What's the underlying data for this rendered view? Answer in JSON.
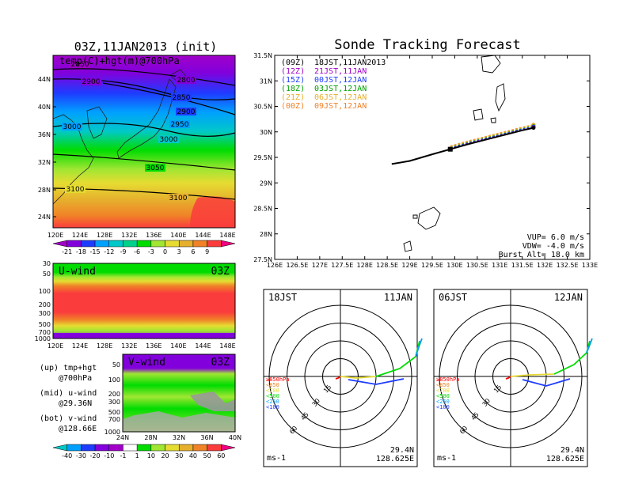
{
  "colors": {
    "temp_scale": [
      "#a000c8",
      "#8200dc",
      "#1e3cff",
      "#00a0ff",
      "#00c8c8",
      "#00d28c",
      "#00dc00",
      "#a0e632",
      "#e6dc32",
      "#e6af2d",
      "#f08228",
      "#fa3c3c",
      "#f00082"
    ],
    "wind_scale": [
      "#00c8c8",
      "#00a0ff",
      "#1e3cff",
      "#8200dc",
      "#a000c8",
      "#ffffff",
      "#00dc00",
      "#a0e632",
      "#e6dc32",
      "#e6af2d",
      "#f08228",
      "#fa3c3c",
      "#f00082"
    ],
    "track_colors": [
      "#000000",
      "#a000c8",
      "#1e3cff",
      "#00a000",
      "#e6af2d",
      "#f08228"
    ],
    "rose_colors": [
      "#ff0000",
      "#f08228",
      "#e6dc32",
      "#00dc00",
      "#00a0ff",
      "#1e3cff"
    ]
  },
  "map_panel": {
    "title": "03Z,11JAN2013 (init)",
    "subtitle": "temp(C)+hgt(m)@700hPa",
    "lat_labels": [
      "44N",
      "40N",
      "36N",
      "32N",
      "28N",
      "24N"
    ],
    "lon_labels": [
      "120E",
      "124E",
      "128E",
      "132E",
      "136E",
      "140E",
      "144E",
      "148E"
    ],
    "contour_labels": [
      "2850",
      "2900",
      "2800",
      "2850",
      "2900",
      "3000",
      "2950",
      "3000",
      "3050",
      "3100",
      "3100"
    ],
    "colorbar_labels": [
      "-21",
      "-18",
      "-15",
      "-12",
      "-9",
      "-6",
      "-3",
      "0",
      "3",
      "6",
      "9"
    ]
  },
  "uwind_panel": {
    "label": "U-wind",
    "time": "03Z",
    "p_labels": [
      "30",
      "50",
      "100",
      "200",
      "300",
      "500",
      "700",
      "1000"
    ],
    "lon_labels": [
      "120E",
      "124E",
      "128E",
      "132E",
      "136E",
      "140E",
      "144E",
      "148E"
    ]
  },
  "vwind_panel": {
    "label": "V-wind",
    "time": "03Z",
    "p_labels": [
      "50",
      "100",
      "200",
      "300",
      "500",
      "700",
      "1000"
    ],
    "lat_labels": [
      "24N",
      "28N",
      "32N",
      "36N",
      "40N"
    ],
    "colorbar_labels": [
      "-40",
      "-30",
      "-20",
      "-10",
      "-1",
      "1",
      "10",
      "20",
      "30",
      "40",
      "50",
      "60"
    ]
  },
  "legend_notes": {
    "up_label": "(up) tmp+hgt",
    "up_level": "@700hPa",
    "mid_label": "(mid) u-wind",
    "mid_loc": "@29.36N",
    "bot_label": "(bot) v-wind",
    "bot_loc": "@128.66E"
  },
  "tracking": {
    "title": "Sonde Tracking Forecast",
    "legend": [
      {
        "code": "(09Z)",
        "time": "18JST,11JAN2013"
      },
      {
        "code": "(12Z)",
        "time": "21JST,11JAN"
      },
      {
        "code": "(15Z)",
        "time": "00JST,12JAN"
      },
      {
        "code": "(18Z)",
        "time": "03JST,12JAN"
      },
      {
        "code": "(21Z)",
        "time": "06JST,12JAN"
      },
      {
        "code": "(00Z)",
        "time": "09JST,12JAN"
      }
    ],
    "lat_labels": [
      "31.5N",
      "31N",
      "30.5N",
      "30N",
      "29.5N",
      "29N",
      "28.5N",
      "28N",
      "27.5N"
    ],
    "lon_labels": [
      "126E",
      "126.5E",
      "127E",
      "127.5E",
      "128E",
      "128.5E",
      "129E",
      "129.5E",
      "130E",
      "130.5E",
      "131E",
      "131.5E",
      "132E",
      "132.5E",
      "133E"
    ],
    "vup": "VUP=  6.0 m/s",
    "vdw": "VDW= -4.0 m/s",
    "burst": "Burst Alt= 18.0 km"
  },
  "rose_left": {
    "time_jst": "18JST",
    "date": "11JAN",
    "ring_labels": [
      "15",
      "30",
      "45",
      "60"
    ],
    "levels": [
      "≥850hPa",
      "<850",
      "<700",
      "<500",
      "<250",
      "<100"
    ],
    "unit": "ms-1",
    "lat": "29.4N",
    "lon": "128.625E"
  },
  "rose_right": {
    "time_jst": "06JST",
    "date": "12JAN",
    "ring_labels": [
      "15",
      "30",
      "45",
      "60"
    ],
    "levels": [
      "≥850hPa",
      "<850",
      "<700",
      "<500",
      "<250",
      "<100"
    ],
    "unit": "ms-1",
    "lat": "29.4N",
    "lon": "128.625E"
  },
  "chart_data": [
    {
      "type": "line",
      "title": "Sonde Tracking Forecast",
      "xlim": [
        126,
        133
      ],
      "ylim": [
        27.5,
        31.5
      ],
      "series": [
        {
          "name": "(09Z)",
          "x": [
            128.6,
            129.0,
            129.5,
            129.9,
            130.3,
            130.7,
            131.1,
            131.5,
            131.75
          ],
          "y": [
            29.37,
            29.43,
            29.56,
            29.66,
            29.76,
            29.85,
            29.94,
            30.03,
            30.08
          ]
        },
        {
          "name": "(12Z)",
          "x": [
            129.9,
            130.3,
            130.7,
            131.1,
            131.5,
            131.75
          ],
          "y": [
            29.67,
            29.77,
            29.86,
            29.95,
            30.04,
            30.09
          ]
        },
        {
          "name": "(15Z)",
          "x": [
            129.9,
            130.3,
            130.7,
            131.1,
            131.5,
            131.75
          ],
          "y": [
            29.68,
            29.78,
            29.87,
            29.96,
            30.05,
            30.1
          ]
        },
        {
          "name": "(18Z)",
          "x": [
            129.9,
            130.3,
            130.7,
            131.1,
            131.5,
            131.75
          ],
          "y": [
            29.69,
            29.79,
            29.88,
            29.97,
            30.06,
            30.11
          ]
        },
        {
          "name": "(21Z)",
          "x": [
            129.9,
            130.3,
            130.7,
            131.1,
            131.5,
            131.75
          ],
          "y": [
            29.71,
            29.81,
            29.9,
            29.99,
            30.08,
            30.13
          ]
        },
        {
          "name": "(00Z)",
          "x": [
            129.9,
            130.3,
            130.7,
            131.1,
            131.5,
            131.75
          ],
          "y": [
            29.72,
            29.82,
            29.91,
            30.0,
            30.09,
            30.14
          ]
        }
      ]
    }
  ]
}
